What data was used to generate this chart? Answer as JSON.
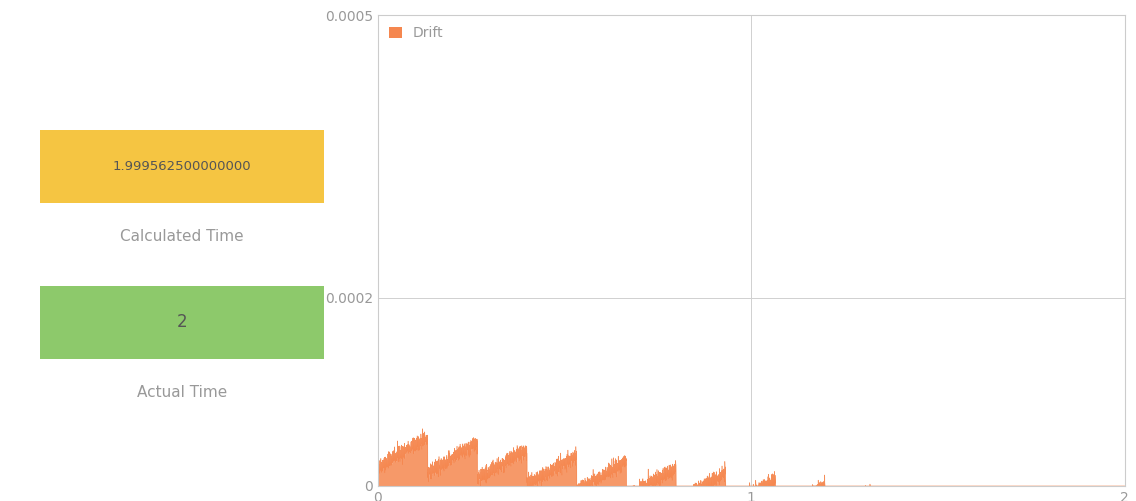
{
  "calculated_time": "1.999562500000000",
  "actual_time": "2",
  "calculated_time_label": "Calculated Time",
  "actual_time_label": "Actual Time",
  "calculated_time_color": "#F5C542",
  "actual_time_color": "#8DC96B",
  "drift_label": "Drift",
  "drift_color": "#F5874F",
  "x_min": 0,
  "x_max": 2,
  "y_min": 0,
  "y_max": 0.0005,
  "y_ticks": [
    0,
    0.0002,
    0.0005
  ],
  "x_ticks": [
    0,
    1,
    2
  ],
  "grid_color": "#d0d0d0",
  "background_color": "#ffffff",
  "num_points": 8000,
  "base_slope": 0.000238,
  "jitter_amplitude": 4e-06,
  "step_interval": 0.133,
  "step_drop": 3.8e-05,
  "initial_value": 2e-05,
  "text_color": "#999999",
  "box_text_color": "#555555",
  "legend_fontsize": 10,
  "tick_fontsize": 10,
  "label_fontsize": 11
}
